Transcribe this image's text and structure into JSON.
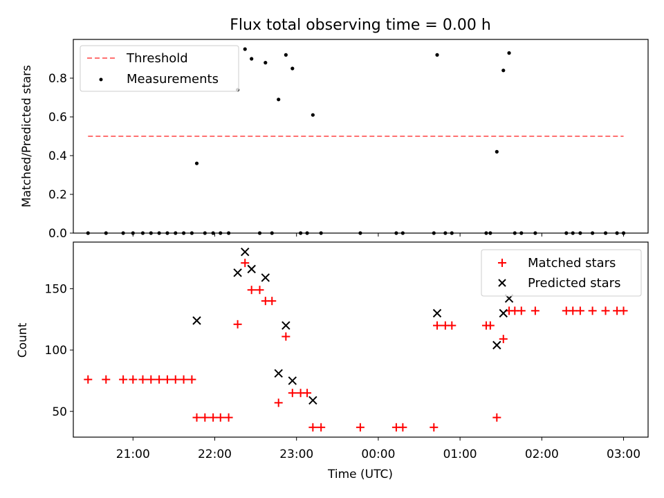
{
  "chart_data": [
    {
      "type": "scatter",
      "title": "Flux total observing time = 0.00 h",
      "xlabel": "",
      "ylabel": "Matched/Predicted stars",
      "xlim_hours": [
        20.27,
        27.3
      ],
      "ylim": [
        0,
        1.0
      ],
      "yticks": [
        0.0,
        0.2,
        0.4,
        0.6,
        0.8
      ],
      "yticklabels": [
        "0.0",
        "0.2",
        "0.4",
        "0.6",
        "0.8"
      ],
      "legend": {
        "position": "top-left",
        "entries": [
          "Threshold",
          "Measurements"
        ]
      },
      "threshold": {
        "name": "Threshold",
        "value": 0.5,
        "x_start_hours": 20.45,
        "x_end_hours": 27.0,
        "color": "#ff7070"
      },
      "measurements": {
        "name": "Measurements",
        "color": "#000000",
        "points": [
          [
            20.45,
            0
          ],
          [
            20.67,
            0
          ],
          [
            20.88,
            0
          ],
          [
            21.0,
            0
          ],
          [
            21.12,
            0
          ],
          [
            21.22,
            0
          ],
          [
            21.32,
            0
          ],
          [
            21.42,
            0
          ],
          [
            21.52,
            0
          ],
          [
            21.62,
            0
          ],
          [
            21.72,
            0
          ],
          [
            21.78,
            0.36
          ],
          [
            21.88,
            0
          ],
          [
            21.98,
            0
          ],
          [
            22.07,
            0
          ],
          [
            22.17,
            0
          ],
          [
            22.28,
            0.74
          ],
          [
            22.37,
            0.95
          ],
          [
            22.45,
            0.9
          ],
          [
            22.55,
            0
          ],
          [
            22.62,
            0.88
          ],
          [
            22.7,
            0
          ],
          [
            22.78,
            0.69
          ],
          [
            22.87,
            0.92
          ],
          [
            22.95,
            0.85
          ],
          [
            23.05,
            0
          ],
          [
            23.13,
            0
          ],
          [
            23.2,
            0.61
          ],
          [
            23.3,
            0
          ],
          [
            23.78,
            0
          ],
          [
            24.22,
            0
          ],
          [
            24.3,
            0
          ],
          [
            24.68,
            0
          ],
          [
            24.72,
            0.92
          ],
          [
            24.82,
            0
          ],
          [
            24.9,
            0
          ],
          [
            25.32,
            0
          ],
          [
            25.37,
            0
          ],
          [
            25.45,
            0.42
          ],
          [
            25.53,
            0.84
          ],
          [
            25.6,
            0.93
          ],
          [
            25.67,
            0
          ],
          [
            25.75,
            0
          ],
          [
            25.92,
            0
          ],
          [
            26.3,
            0
          ],
          [
            26.38,
            0
          ],
          [
            26.47,
            0
          ],
          [
            26.62,
            0
          ],
          [
            26.78,
            0
          ],
          [
            26.92,
            0
          ],
          [
            27.0,
            0
          ]
        ]
      }
    },
    {
      "type": "scatter",
      "title": "",
      "xlabel": "Time (UTC)",
      "ylabel": "Count",
      "xlim_hours": [
        20.27,
        27.3
      ],
      "ylim": [
        29,
        188
      ],
      "yticks": [
        50,
        100,
        150
      ],
      "yticklabels": [
        "50",
        "100",
        "150"
      ],
      "xticks_hours": [
        21,
        22,
        23,
        24,
        25,
        26,
        27
      ],
      "xticklabels": [
        "21:00",
        "22:00",
        "23:00",
        "00:00",
        "01:00",
        "02:00",
        "03:00"
      ],
      "legend": {
        "position": "top-right",
        "entries": [
          "Matched stars",
          "Predicted stars"
        ]
      },
      "series": [
        {
          "name": "Matched stars",
          "marker": "+",
          "color": "#ff0000",
          "points": [
            [
              20.45,
              76
            ],
            [
              20.67,
              76
            ],
            [
              20.88,
              76
            ],
            [
              21.0,
              76
            ],
            [
              21.12,
              76
            ],
            [
              21.22,
              76
            ],
            [
              21.32,
              76
            ],
            [
              21.42,
              76
            ],
            [
              21.52,
              76
            ],
            [
              21.62,
              76
            ],
            [
              21.72,
              76
            ],
            [
              21.78,
              45
            ],
            [
              21.88,
              45
            ],
            [
              21.98,
              45
            ],
            [
              22.07,
              45
            ],
            [
              22.17,
              45
            ],
            [
              22.28,
              121
            ],
            [
              22.37,
              171
            ],
            [
              22.45,
              149
            ],
            [
              22.55,
              149
            ],
            [
              22.62,
              140
            ],
            [
              22.7,
              140
            ],
            [
              22.78,
              57
            ],
            [
              22.87,
              111
            ],
            [
              22.95,
              65
            ],
            [
              23.05,
              65
            ],
            [
              23.13,
              65
            ],
            [
              23.2,
              37
            ],
            [
              23.3,
              37
            ],
            [
              23.78,
              37
            ],
            [
              24.22,
              37
            ],
            [
              24.3,
              37
            ],
            [
              24.68,
              37
            ],
            [
              24.72,
              120
            ],
            [
              24.82,
              120
            ],
            [
              24.9,
              120
            ],
            [
              25.32,
              120
            ],
            [
              25.37,
              120
            ],
            [
              25.45,
              45
            ],
            [
              25.53,
              109
            ],
            [
              25.6,
              132
            ],
            [
              25.67,
              132
            ],
            [
              25.75,
              132
            ],
            [
              25.92,
              132
            ],
            [
              26.3,
              132
            ],
            [
              26.38,
              132
            ],
            [
              26.47,
              132
            ],
            [
              26.62,
              132
            ],
            [
              26.78,
              132
            ],
            [
              26.92,
              132
            ],
            [
              27.0,
              132
            ]
          ]
        },
        {
          "name": "Predicted stars",
          "marker": "x",
          "color": "#000000",
          "points": [
            [
              21.78,
              124
            ],
            [
              22.28,
              163
            ],
            [
              22.37,
              180
            ],
            [
              22.45,
              166
            ],
            [
              22.62,
              159
            ],
            [
              22.78,
              81
            ],
            [
              22.87,
              120
            ],
            [
              22.95,
              75
            ],
            [
              23.2,
              59
            ],
            [
              24.72,
              130
            ],
            [
              25.45,
              104
            ],
            [
              25.53,
              130
            ],
            [
              25.6,
              142
            ]
          ]
        }
      ]
    }
  ]
}
